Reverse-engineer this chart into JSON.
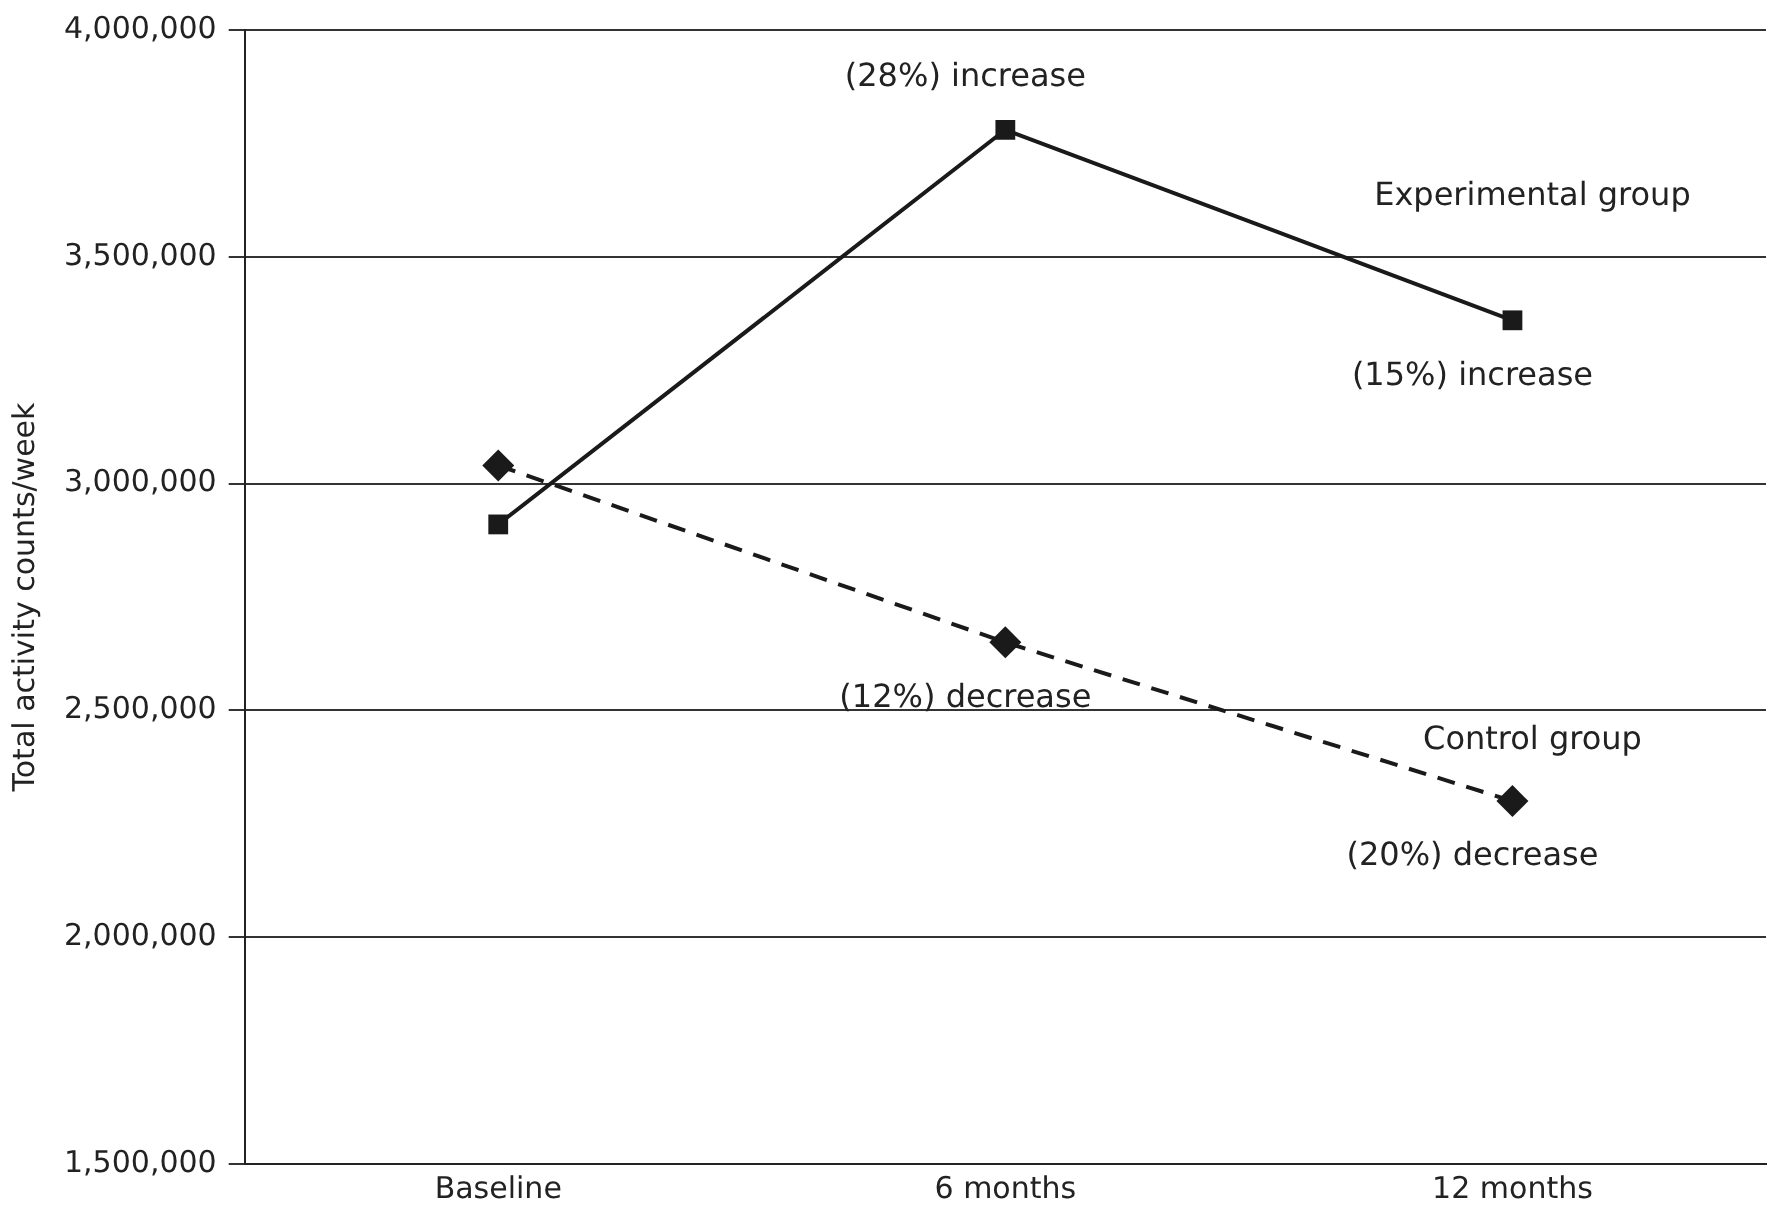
{
  "chart_data": {
    "type": "line",
    "ylabel": "Total activity counts/week",
    "categories": [
      "Baseline",
      "6 months",
      "12 months"
    ],
    "series": [
      {
        "name": "Experimental group",
        "color": "#1a1a1a",
        "values": [
          2910000,
          3780000,
          3360000
        ],
        "marker": "square",
        "line_style": "solid"
      },
      {
        "name": "Control group",
        "color": "#1a1a1a",
        "values": [
          3040000,
          2650000,
          2300000
        ],
        "marker": "diamond",
        "line_style": "dashed"
      }
    ],
    "ylim": [
      1500000,
      4000000
    ],
    "yticks": [
      {
        "value": 1500000,
        "label": "1,500,000"
      },
      {
        "value": 2000000,
        "label": "2,000,000"
      },
      {
        "value": 2500000,
        "label": "2,500,000"
      },
      {
        "value": 3000000,
        "label": "3,000,000"
      },
      {
        "value": 3500000,
        "label": "3,500,000"
      },
      {
        "value": 4000000,
        "label": "4,000,000"
      }
    ],
    "grid": "y",
    "legend": false,
    "annotations": [
      {
        "text": "(28%) increase",
        "x": "6 months",
        "y": 3780000
      },
      {
        "text": "(15%) increase",
        "x": "12 months",
        "y": 3360000
      },
      {
        "text": "(12%) decrease",
        "x": "6 months",
        "y": 2650000
      },
      {
        "text": "(20%) decrease",
        "x": "12 months",
        "y": 2300000
      }
    ]
  }
}
